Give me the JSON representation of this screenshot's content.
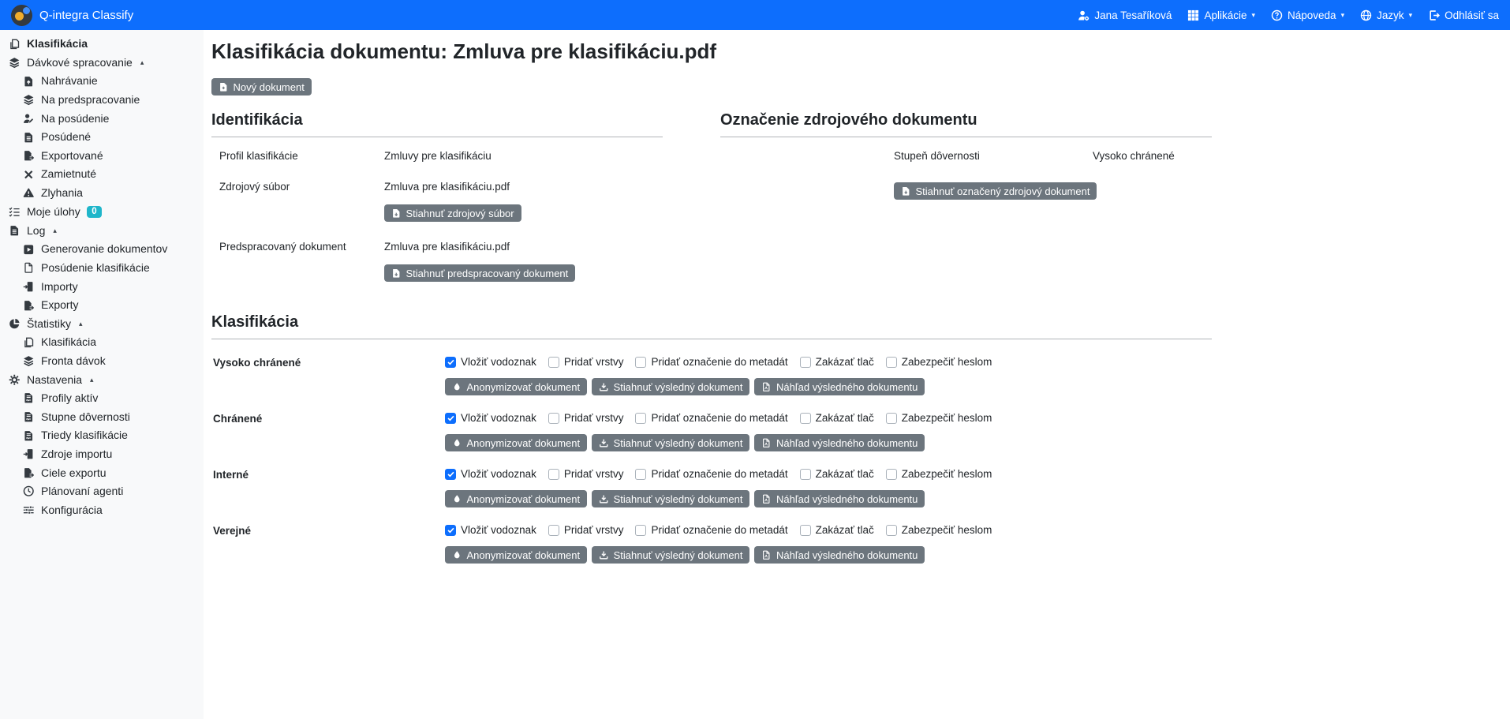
{
  "colors": {
    "topbar": "#0d6efd",
    "badge": "#1fb6ca",
    "button": "#6c757d",
    "checkbox_checked": "#0d6efd",
    "logo_dot": "#f0ad2d"
  },
  "topbar": {
    "brand": "Q-integra Classify",
    "items": [
      {
        "label": "Jana Tesaříková",
        "icon": "user-gear-icon",
        "caret": false
      },
      {
        "label": "Aplikácie",
        "icon": "grid-icon",
        "caret": true
      },
      {
        "label": "Nápoveda",
        "icon": "question-circle-icon",
        "caret": true
      },
      {
        "label": "Jazyk",
        "icon": "globe-icon",
        "caret": true
      },
      {
        "label": "Odhlásiť sa",
        "icon": "logout-icon",
        "caret": false
      }
    ]
  },
  "sidebar": {
    "items": [
      {
        "label": "Klasifikácia",
        "icon": "copy-icon",
        "level": 0,
        "bold": true
      },
      {
        "label": "Dávkové spracovanie",
        "icon": "layers-icon",
        "level": 0,
        "expanded": true
      },
      {
        "label": "Nahrávanie",
        "icon": "file-upload-icon",
        "level": 1
      },
      {
        "label": "Na predspracovanie",
        "icon": "layers-icon",
        "level": 1
      },
      {
        "label": "Na posúdenie",
        "icon": "user-edit-icon",
        "level": 1
      },
      {
        "label": "Posúdené",
        "icon": "file-lines-icon",
        "level": 1
      },
      {
        "label": "Exportované",
        "icon": "file-export-icon",
        "level": 1
      },
      {
        "label": "Zamietnuté",
        "icon": "x-icon",
        "level": 1
      },
      {
        "label": "Zlyhania",
        "icon": "warning-icon",
        "level": 1
      },
      {
        "label": "Moje úlohy",
        "icon": "tasks-icon",
        "level": 0,
        "badge": "0"
      },
      {
        "label": "Log",
        "icon": "file-lines-icon",
        "level": 0,
        "expanded": true
      },
      {
        "label": "Generovanie dokumentov",
        "icon": "play-square-icon",
        "level": 1
      },
      {
        "label": "Posúdenie klasifikácie",
        "icon": "file-blank-icon",
        "level": 1
      },
      {
        "label": "Importy",
        "icon": "file-import-icon",
        "level": 1
      },
      {
        "label": "Exporty",
        "icon": "file-export-icon",
        "level": 1
      },
      {
        "label": "Štatistiky",
        "icon": "pie-chart-icon",
        "level": 0,
        "expanded": true
      },
      {
        "label": "Klasifikácia",
        "icon": "copy-icon",
        "level": 1
      },
      {
        "label": "Fronta dávok",
        "icon": "layers-icon",
        "level": 1
      },
      {
        "label": "Nastavenia",
        "icon": "gear-icon",
        "level": 0,
        "expanded": true
      },
      {
        "label": "Profily aktív",
        "icon": "file-contract-icon",
        "level": 1
      },
      {
        "label": "Stupne dôvernosti",
        "icon": "file-contract-icon",
        "level": 1
      },
      {
        "label": "Triedy klasifikácie",
        "icon": "file-contract-icon",
        "level": 1
      },
      {
        "label": "Zdroje importu",
        "icon": "file-import-icon",
        "level": 1
      },
      {
        "label": "Ciele exportu",
        "icon": "file-export-icon",
        "level": 1
      },
      {
        "label": "Plánovaní agenti",
        "icon": "clock-icon",
        "level": 1
      },
      {
        "label": "Konfigurácia",
        "icon": "sliders-icon",
        "level": 1
      }
    ]
  },
  "main": {
    "title": "Klasifikácia dokumentu: Zmluva pre klasifikáciu.pdf",
    "new_document_button": "Nový dokument",
    "identification": {
      "heading": "Identifikácia",
      "fields": [
        {
          "label": "Profil klasifikácie",
          "value": "Zmluvy pre klasifikáciu"
        },
        {
          "label": "Zdrojový súbor",
          "value": "Zmluva pre klasifikáciu.pdf",
          "button": "Stiahnuť zdrojový súbor",
          "button_icon": "file-download-icon"
        },
        {
          "label": "Predspracovaný dokument",
          "value": "Zmluva pre klasifikáciu.pdf",
          "button": "Stiahnuť predspracovaný dokument",
          "button_icon": "file-download-icon"
        }
      ]
    },
    "source_marking": {
      "heading": "Označenie zdrojového dokumentu",
      "fields": [
        {
          "label": "Stupeň dôvernosti",
          "value": "Vysoko chránené"
        }
      ],
      "button": "Stiahnuť označený zdrojový dokument",
      "button_icon": "file-download-icon"
    },
    "classification": {
      "heading": "Klasifikácia",
      "checkbox_labels": [
        "Vložiť vodoznak",
        "Pridať vrstvy",
        "Pridať označenie do metadát",
        "Zakázať tlač",
        "Zabezpečiť heslom"
      ],
      "buttons": [
        {
          "label": "Anonymizovať dokument",
          "icon": "droplet-icon"
        },
        {
          "label": "Stiahnuť výsledný dokument",
          "icon": "download-icon"
        },
        {
          "label": "Náhľad výsledného dokumentu",
          "icon": "file-pdf-icon"
        }
      ],
      "rows": [
        {
          "label": "Vysoko chránené",
          "checked": [
            true,
            false,
            false,
            false,
            false
          ]
        },
        {
          "label": "Chránené",
          "checked": [
            true,
            false,
            false,
            false,
            false
          ]
        },
        {
          "label": "Interné",
          "checked": [
            true,
            false,
            false,
            false,
            false
          ]
        },
        {
          "label": "Verejné",
          "checked": [
            true,
            false,
            false,
            false,
            false
          ]
        }
      ]
    }
  }
}
